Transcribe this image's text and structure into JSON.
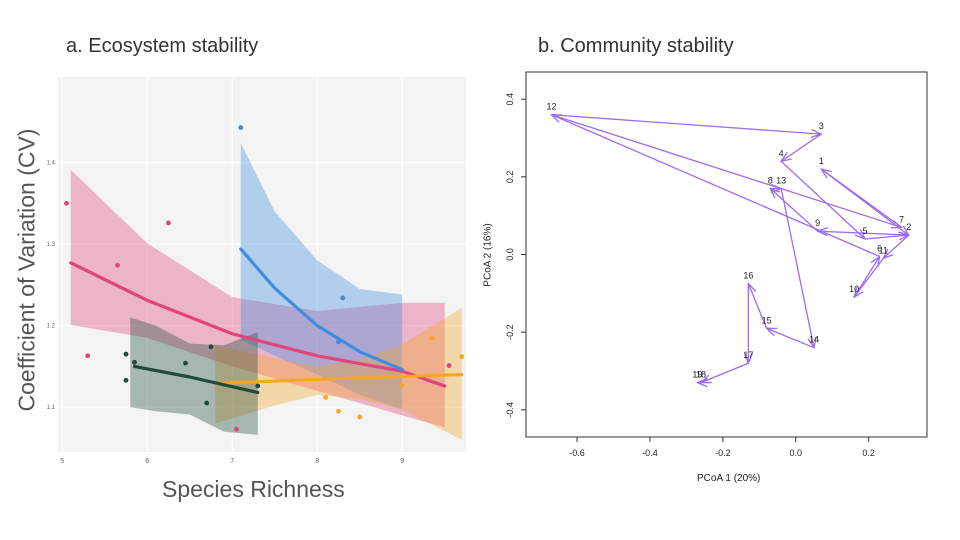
{
  "chart_data": [
    {
      "type": "scatter",
      "title": "a. Ecosystem stability",
      "xlabel": "Species Richness",
      "ylabel": "Coefficient of Variation (CV)",
      "xlim": [
        4.95,
        9.75
      ],
      "ylim": [
        1.045,
        1.505
      ],
      "x_ticks": [
        "5",
        "6",
        "7",
        "8",
        "9"
      ],
      "y_ticks": [
        "1.1",
        "1.2",
        "1.3",
        "1.4"
      ],
      "grid": true,
      "series": [
        {
          "color": "#e0457b",
          "points": [
            [
              5.05,
              1.35
            ],
            [
              5.3,
              1.163
            ],
            [
              5.65,
              1.274
            ],
            [
              6.25,
              1.326
            ],
            [
              7.05,
              1.073
            ],
            [
              9.55,
              1.151
            ]
          ],
          "fit": [
            [
              5.1,
              1.277
            ],
            [
              6.0,
              1.231
            ],
            [
              7.0,
              1.19
            ],
            [
              8.0,
              1.163
            ],
            [
              9.0,
              1.144
            ],
            [
              9.5,
              1.126
            ]
          ],
          "band_upper": [
            [
              5.1,
              1.391
            ],
            [
              6.0,
              1.301
            ],
            [
              7.0,
              1.235
            ],
            [
              8.0,
              1.218
            ],
            [
              9.0,
              1.228
            ],
            [
              9.5,
              1.228
            ]
          ],
          "band_lower": [
            [
              5.1,
              1.201
            ],
            [
              6.0,
              1.185
            ],
            [
              7.0,
              1.15
            ],
            [
              8.0,
              1.12
            ],
            [
              9.0,
              1.09
            ],
            [
              9.5,
              1.075
            ]
          ]
        },
        {
          "color": "#3d8ee0",
          "points": [
            [
              7.1,
              1.443
            ],
            [
              8.3,
              1.234
            ],
            [
              8.25,
              1.18
            ]
          ],
          "fit": [
            [
              7.1,
              1.294
            ],
            [
              7.5,
              1.246
            ],
            [
              8.0,
              1.2
            ],
            [
              8.5,
              1.168
            ],
            [
              9.0,
              1.146
            ]
          ],
          "band_upper": [
            [
              7.1,
              1.424
            ],
            [
              7.5,
              1.34
            ],
            [
              8.0,
              1.28
            ],
            [
              8.5,
              1.245
            ],
            [
              9.0,
              1.238
            ]
          ],
          "band_lower": [
            [
              7.1,
              1.183
            ],
            [
              7.5,
              1.163
            ],
            [
              8.0,
              1.14
            ],
            [
              8.5,
              1.115
            ],
            [
              9.0,
              1.097
            ]
          ]
        },
        {
          "color": "#f5a623",
          "points": [
            [
              8.1,
              1.112
            ],
            [
              8.25,
              1.095
            ],
            [
              8.5,
              1.088
            ],
            [
              9.0,
              1.127
            ],
            [
              9.35,
              1.185
            ],
            [
              9.7,
              1.162
            ]
          ],
          "fit": [
            [
              6.8,
              1.129
            ],
            [
              7.5,
              1.132
            ],
            [
              8.5,
              1.136
            ],
            [
              9.7,
              1.14
            ]
          ],
          "band_upper": [
            [
              6.8,
              1.176
            ],
            [
              7.5,
              1.16
            ],
            [
              8.0,
              1.15
            ],
            [
              8.5,
              1.158
            ],
            [
              9.0,
              1.177
            ],
            [
              9.7,
              1.222
            ]
          ],
          "band_lower": [
            [
              6.8,
              1.08
            ],
            [
              7.5,
              1.102
            ],
            [
              8.0,
              1.115
            ],
            [
              8.5,
              1.11
            ],
            [
              9.0,
              1.097
            ],
            [
              9.7,
              1.06
            ]
          ]
        },
        {
          "color": "#1f4a3c",
          "points": [
            [
              5.75,
              1.165
            ],
            [
              5.85,
              1.155
            ],
            [
              6.45,
              1.154
            ],
            [
              5.75,
              1.133
            ],
            [
              6.75,
              1.174
            ],
            [
              6.7,
              1.105
            ],
            [
              7.3,
              1.126
            ]
          ],
          "fit": [
            [
              5.85,
              1.15
            ],
            [
              6.5,
              1.137
            ],
            [
              7.3,
              1.118
            ]
          ],
          "band_upper": [
            [
              5.8,
              1.21
            ],
            [
              6.1,
              1.2
            ],
            [
              6.5,
              1.178
            ],
            [
              6.9,
              1.176
            ],
            [
              7.3,
              1.192
            ]
          ],
          "band_lower": [
            [
              5.8,
              1.1
            ],
            [
              6.1,
              1.095
            ],
            [
              6.5,
              1.091
            ],
            [
              6.9,
              1.07
            ],
            [
              7.3,
              1.066
            ]
          ]
        }
      ]
    },
    {
      "type": "scatter",
      "title": "b. Community stability",
      "xlabel": "PCoA 1 (20%)",
      "ylabel": "PCoA 2 (16%)",
      "xlim": [
        -0.74,
        0.36
      ],
      "ylim": [
        -0.47,
        0.47
      ],
      "x_ticks": [
        "-0.6",
        "-0.4",
        "-0.2",
        "0.0",
        "0.2"
      ],
      "y_ticks": [
        "-0.4",
        "-0.2",
        "0.0",
        "0.2",
        "0.4"
      ],
      "arrow_color": "#9b6bf0",
      "points": [
        {
          "label": "1",
          "x": 0.07,
          "y": 0.22
        },
        {
          "label": "2",
          "x": 0.31,
          "y": 0.05
        },
        {
          "label": "3",
          "x": 0.07,
          "y": 0.31
        },
        {
          "label": "4",
          "x": -0.04,
          "y": 0.24
        },
        {
          "label": "5",
          "x": 0.19,
          "y": 0.04
        },
        {
          "label": "6",
          "x": 0.23,
          "y": -0.005
        },
        {
          "label": "7",
          "x": 0.29,
          "y": 0.07
        },
        {
          "label": "8",
          "x": -0.07,
          "y": 0.17
        },
        {
          "label": "9",
          "x": 0.06,
          "y": 0.06
        },
        {
          "label": "10",
          "x": 0.16,
          "y": -0.11
        },
        {
          "label": "11",
          "x": 0.24,
          "y": -0.01
        },
        {
          "label": "12",
          "x": -0.67,
          "y": 0.36
        },
        {
          "label": "13",
          "x": -0.04,
          "y": 0.17
        },
        {
          "label": "14",
          "x": 0.05,
          "y": -0.24
        },
        {
          "label": "15",
          "x": -0.08,
          "y": -0.19
        },
        {
          "label": "16",
          "x": -0.13,
          "y": -0.075
        },
        {
          "label": "17",
          "x": -0.13,
          "y": -0.28
        },
        {
          "label": "18",
          "x": -0.26,
          "y": -0.33
        },
        {
          "label": "19",
          "x": -0.27,
          "y": -0.33
        }
      ],
      "path": [
        "12",
        "7",
        "1",
        "2",
        "11",
        "10",
        "6",
        "12",
        "3",
        "4",
        "5",
        "2",
        "9",
        "8",
        "13",
        "14",
        "15",
        "16",
        "17",
        "18",
        "19"
      ]
    }
  ]
}
